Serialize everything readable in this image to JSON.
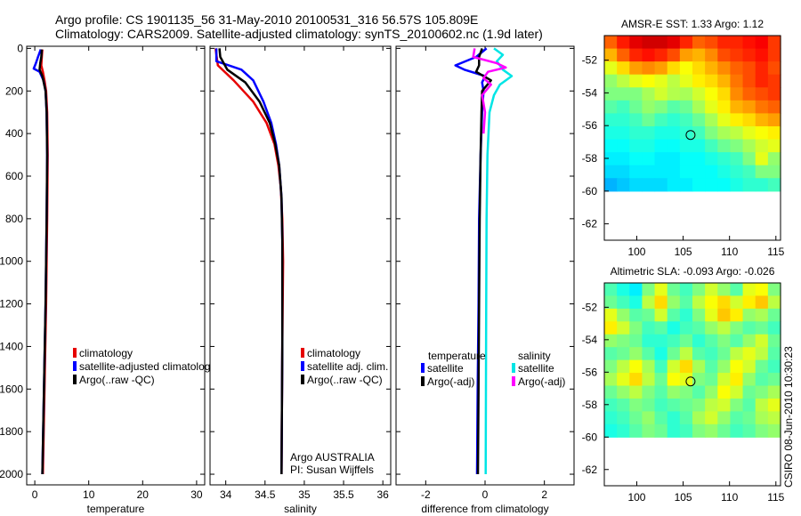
{
  "header": {
    "line1": "Argo profile: CS 1901135_56 31-May-2010 20100531_316 56.57S 105.809E",
    "line2": "Climatology: CARS2009. Satellite-adjusted climatology: synTS_20100602.nc (1.9d later)"
  },
  "colors": {
    "climatology": "#e60000",
    "satellite": "#0000ff",
    "argo": "#000000",
    "sat_salinity": "#00e5e5",
    "argo_adj_salinity": "#ff00ff"
  },
  "credit": "CSIRO 08-Jun-2010 10:30:23",
  "chart_data": [
    {
      "id": "temperature",
      "type": "line",
      "xlabel": "temperature",
      "xlim": [
        -1.5,
        31.5
      ],
      "ylim": [
        2050,
        -10
      ],
      "xticks": [
        0,
        10,
        20,
        30
      ],
      "yticks": [
        0,
        200,
        400,
        600,
        800,
        1000,
        1200,
        1400,
        1600,
        1800,
        2000
      ],
      "legend_entries": [
        "climatology",
        "satellite-adjusted climatology",
        "Argo(..raw -QC)"
      ],
      "legend_position": "lower-right",
      "series": [
        {
          "name": "climatology",
          "color_key": "climatology",
          "depth": [
            5,
            40,
            80,
            110,
            150,
            200,
            300,
            500,
            800,
            1200,
            1600,
            2000
          ],
          "value": [
            1.4,
            1.3,
            1.2,
            1.5,
            1.8,
            2.1,
            2.3,
            2.4,
            2.3,
            2.1,
            1.8,
            1.5
          ]
        },
        {
          "name": "satellite",
          "color_key": "satellite",
          "depth": [
            5,
            40,
            70,
            95,
            110,
            150,
            200,
            300,
            500,
            800,
            1200,
            1600,
            2000
          ],
          "value": [
            1.1,
            0.6,
            0.2,
            -0.2,
            0.9,
            1.6,
            2.0,
            2.2,
            2.3,
            2.2,
            2.0,
            1.7,
            1.4
          ]
        },
        {
          "name": "Argo",
          "color_key": "argo",
          "depth": [
            5,
            40,
            70,
            100,
            130,
            200,
            300,
            500,
            800,
            1200,
            1600,
            2000
          ],
          "value": [
            1.3,
            1.2,
            1.0,
            0.9,
            1.4,
            2.0,
            2.2,
            2.3,
            2.2,
            2.0,
            1.7,
            1.4
          ]
        }
      ]
    },
    {
      "id": "salinity",
      "type": "line",
      "xlabel": "salinity",
      "xlim": [
        33.8,
        36.1
      ],
      "ylim": [
        2050,
        -10
      ],
      "xticks": [
        34,
        34.5,
        35,
        35.5,
        36
      ],
      "xtick_labels": [
        "34",
        "34.5",
        "35",
        "35.5",
        "36"
      ],
      "legend_entries": [
        "climatology",
        "satellite adj. clim.",
        "Argo(..raw -QC)"
      ],
      "legend_position": "lower-right",
      "annotation_lines": [
        "Argo AUSTRALIA",
        "PI: Susan Wijffels"
      ],
      "series": [
        {
          "name": "climatology",
          "color_key": "climatology",
          "depth": [
            0,
            80,
            150,
            250,
            350,
            450,
            550,
            650,
            800,
            1000,
            1400,
            2000
          ],
          "value": [
            33.87,
            33.9,
            34.1,
            34.35,
            34.52,
            34.62,
            34.67,
            34.7,
            34.72,
            34.73,
            34.72,
            34.71
          ]
        },
        {
          "name": "satellite",
          "color_key": "satellite",
          "depth": [
            0,
            60,
            100,
            150,
            250,
            350,
            450,
            550,
            700,
            900,
            1400,
            2000
          ],
          "value": [
            33.88,
            33.88,
            34.2,
            34.35,
            34.48,
            34.58,
            34.64,
            34.68,
            34.71,
            34.72,
            34.72,
            34.71
          ]
        },
        {
          "name": "Argo",
          "color_key": "argo",
          "depth": [
            0,
            40,
            100,
            160,
            250,
            350,
            450,
            550,
            700,
            900,
            1400,
            2000
          ],
          "value": [
            33.92,
            33.93,
            34.02,
            34.25,
            34.43,
            34.56,
            34.63,
            34.68,
            34.71,
            34.72,
            34.72,
            34.71
          ]
        }
      ]
    },
    {
      "id": "difference",
      "type": "line",
      "xlabel": "difference from climatology",
      "xlim": [
        -3,
        3
      ],
      "ylim": [
        2050,
        -10
      ],
      "xticks": [
        -2,
        0,
        2
      ],
      "xtick_labels": [
        "-2",
        "0",
        "2"
      ],
      "legend_left_title": "temperature",
      "legend_right_title": "salinity",
      "legend_left_entries": [
        "satellite",
        "Argo(-adj)"
      ],
      "legend_right_entries": [
        "satellite",
        "Argo(-adj)"
      ],
      "series": [
        {
          "name": "temperature satellite",
          "color_key": "satellite",
          "depth": [
            0,
            40,
            80,
            100,
            130,
            160,
            200,
            300,
            500,
            800,
            1200,
            1600,
            2000
          ],
          "value": [
            0.05,
            -0.3,
            -1.0,
            -0.7,
            0.0,
            -0.1,
            -0.05,
            -0.1,
            -0.15,
            -0.2,
            -0.22,
            -0.25,
            -0.27
          ]
        },
        {
          "name": "temperature Argo(-adj)",
          "color_key": "argo",
          "depth": [
            0,
            40,
            80,
            110,
            150,
            200,
            300,
            500,
            800,
            1200,
            1600,
            2000
          ],
          "value": [
            -0.1,
            -0.2,
            -0.2,
            -0.3,
            0.2,
            -0.1,
            -0.12,
            -0.15,
            -0.18,
            -0.2,
            -0.22,
            -0.24
          ]
        },
        {
          "name": "salinity satellite",
          "color_key": "sat_salinity",
          "depth": [
            0,
            30,
            60,
            100,
            130,
            170,
            220,
            300,
            500,
            800,
            1200,
            1600,
            2000
          ],
          "value": [
            0.3,
            0.6,
            0.4,
            0.6,
            0.9,
            0.5,
            0.3,
            0.15,
            0.08,
            0.05,
            0.04,
            0.03,
            0.02
          ]
        },
        {
          "name": "salinity Argo(-adj)",
          "color_key": "argo_adj_salinity",
          "depth": [
            0,
            40,
            70,
            90,
            110,
            140,
            170,
            220,
            300,
            400
          ],
          "value": [
            -0.35,
            -0.4,
            0.4,
            0.7,
            0.1,
            -0.05,
            0.2,
            -0.1,
            0.0,
            -0.05
          ]
        }
      ]
    },
    {
      "id": "sst_map",
      "type": "heatmap",
      "title": "AMSR-E SST: 1.33 Argo: 1.12",
      "xlim": [
        96.5,
        115.5
      ],
      "ylim": [
        -63,
        -50.5
      ],
      "xticks": [
        100,
        105,
        110,
        115
      ],
      "xtick_labels": [
        "100",
        "105",
        "110",
        "115"
      ],
      "yticks": [
        -52,
        -54,
        -56,
        -58,
        -60,
        -62
      ],
      "ytick_labels": [
        "-52",
        "-54",
        "-56",
        "-58",
        "-60",
        "-62"
      ],
      "data_extent_lat": [
        -60,
        -50.5
      ],
      "marker": {
        "lon": 105.8,
        "lat": -56.57
      },
      "colormap": "jet",
      "value_range": [
        0,
        1
      ],
      "grid_note": "field rows north to south, columns west to east (normalized colormap index)",
      "field": [
        [
          0.78,
          0.85,
          0.9,
          0.92,
          0.92,
          0.9,
          0.84,
          0.78,
          0.8,
          0.84,
          0.84,
          0.86,
          0.88,
          0.82
        ],
        [
          0.7,
          0.78,
          0.84,
          0.86,
          0.84,
          0.8,
          0.72,
          0.7,
          0.74,
          0.8,
          0.82,
          0.84,
          0.86,
          0.82
        ],
        [
          0.6,
          0.66,
          0.72,
          0.74,
          0.72,
          0.66,
          0.62,
          0.66,
          0.7,
          0.74,
          0.78,
          0.8,
          0.84,
          0.8
        ],
        [
          0.52,
          0.56,
          0.6,
          0.62,
          0.6,
          0.56,
          0.6,
          0.64,
          0.66,
          0.7,
          0.76,
          0.8,
          0.84,
          0.82
        ],
        [
          0.5,
          0.5,
          0.5,
          0.54,
          0.58,
          0.55,
          0.54,
          0.58,
          0.62,
          0.66,
          0.74,
          0.78,
          0.8,
          0.82
        ],
        [
          0.46,
          0.44,
          0.48,
          0.52,
          0.5,
          0.46,
          0.48,
          0.54,
          0.6,
          0.64,
          0.7,
          0.72,
          0.76,
          0.78
        ],
        [
          0.42,
          0.42,
          0.44,
          0.48,
          0.44,
          0.42,
          0.44,
          0.48,
          0.54,
          0.6,
          0.64,
          0.66,
          0.7,
          0.72
        ],
        [
          0.4,
          0.4,
          0.42,
          0.42,
          0.4,
          0.4,
          0.42,
          0.44,
          0.5,
          0.54,
          0.56,
          0.6,
          0.62,
          0.64
        ],
        [
          0.38,
          0.38,
          0.4,
          0.4,
          0.38,
          0.38,
          0.4,
          0.4,
          0.44,
          0.48,
          0.5,
          0.54,
          0.58,
          0.6
        ],
        [
          0.36,
          0.36,
          0.38,
          0.38,
          0.36,
          0.36,
          0.38,
          0.38,
          0.4,
          0.42,
          0.44,
          0.5,
          0.6,
          0.52
        ],
        [
          0.34,
          0.34,
          0.36,
          0.36,
          0.36,
          0.36,
          0.38,
          0.38,
          0.38,
          0.4,
          0.42,
          0.44,
          0.5,
          0.5
        ],
        [
          0.3,
          0.32,
          0.34,
          0.34,
          0.34,
          0.36,
          0.36,
          0.38,
          0.38,
          0.38,
          0.4,
          0.42,
          0.42,
          0.44
        ]
      ]
    },
    {
      "id": "sla_map",
      "type": "heatmap",
      "title": "Altimetric SLA: -0.093 Argo: -0.026",
      "xlim": [
        96.5,
        115.5
      ],
      "ylim": [
        -63,
        -50.5
      ],
      "xticks": [
        100,
        105,
        110,
        115
      ],
      "xtick_labels": [
        "100",
        "105",
        "110",
        "115"
      ],
      "yticks": [
        -52,
        -54,
        -56,
        -58,
        -60,
        -62
      ],
      "ytick_labels": [
        "-52",
        "-54",
        "-56",
        "-58",
        "-60",
        "-62"
      ],
      "data_extent_lat": [
        -60,
        -50.5
      ],
      "marker": {
        "lon": 105.8,
        "lat": -56.57
      },
      "colormap": "jet",
      "value_range": [
        0,
        1
      ],
      "grid_note": "field rows north to south, columns west to east (normalized colormap index)",
      "field": [
        [
          0.45,
          0.4,
          0.36,
          0.5,
          0.6,
          0.48,
          0.44,
          0.5,
          0.58,
          0.52,
          0.46,
          0.6,
          0.62,
          0.5
        ],
        [
          0.48,
          0.44,
          0.4,
          0.56,
          0.66,
          0.52,
          0.46,
          0.56,
          0.62,
          0.66,
          0.58,
          0.64,
          0.68,
          0.56
        ],
        [
          0.6,
          0.52,
          0.46,
          0.48,
          0.58,
          0.46,
          0.42,
          0.5,
          0.6,
          0.68,
          0.64,
          0.52,
          0.54,
          0.48
        ],
        [
          0.64,
          0.58,
          0.5,
          0.44,
          0.46,
          0.4,
          0.44,
          0.46,
          0.52,
          0.56,
          0.5,
          0.46,
          0.48,
          0.44
        ],
        [
          0.52,
          0.5,
          0.48,
          0.42,
          0.42,
          0.44,
          0.48,
          0.42,
          0.46,
          0.5,
          0.46,
          0.52,
          0.58,
          0.48
        ],
        [
          0.46,
          0.48,
          0.52,
          0.46,
          0.4,
          0.48,
          0.56,
          0.46,
          0.44,
          0.48,
          0.56,
          0.6,
          0.56,
          0.46
        ],
        [
          0.5,
          0.56,
          0.62,
          0.54,
          0.44,
          0.58,
          0.66,
          0.54,
          0.46,
          0.52,
          0.62,
          0.58,
          0.48,
          0.44
        ],
        [
          0.54,
          0.6,
          0.66,
          0.56,
          0.48,
          0.62,
          0.6,
          0.5,
          0.48,
          0.58,
          0.64,
          0.52,
          0.46,
          0.48
        ],
        [
          0.48,
          0.52,
          0.56,
          0.5,
          0.46,
          0.52,
          0.5,
          0.46,
          0.52,
          0.62,
          0.58,
          0.48,
          0.5,
          0.54
        ],
        [
          0.44,
          0.46,
          0.5,
          0.48,
          0.44,
          0.46,
          0.48,
          0.5,
          0.56,
          0.58,
          0.5,
          0.46,
          0.56,
          0.6
        ],
        [
          0.42,
          0.44,
          0.48,
          0.52,
          0.46,
          0.42,
          0.46,
          0.54,
          0.58,
          0.52,
          0.46,
          0.48,
          0.54,
          0.56
        ],
        [
          0.4,
          0.42,
          0.46,
          0.5,
          0.48,
          0.42,
          0.44,
          0.5,
          0.52,
          0.48,
          0.44,
          0.46,
          0.5,
          0.52
        ]
      ]
    }
  ]
}
